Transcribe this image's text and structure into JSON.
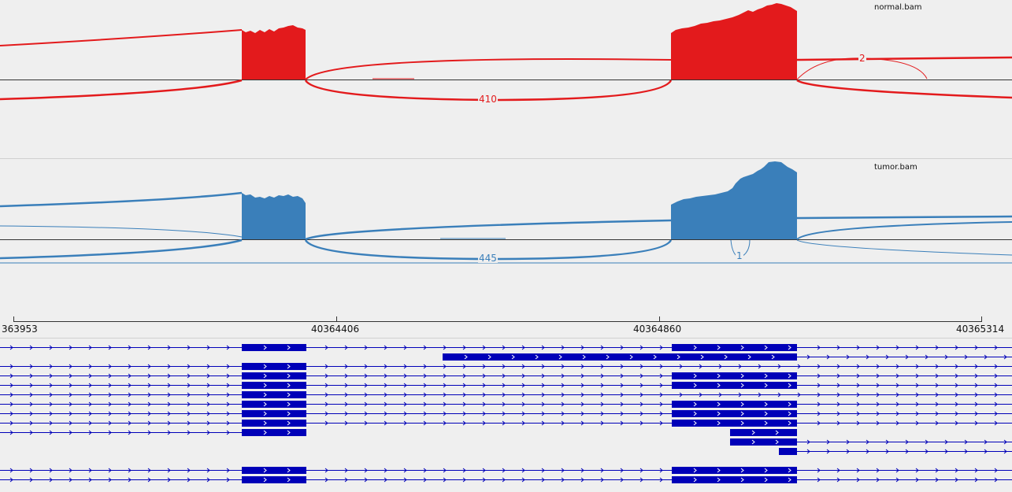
{
  "tracks": {
    "normal": {
      "name": "normal.bam",
      "color": "#e31a1c",
      "junction_labels": [
        "410",
        "2"
      ]
    },
    "tumor": {
      "name": "tumor.bam",
      "color": "#3a7fba",
      "junction_labels": [
        "445",
        "1"
      ]
    }
  },
  "ruler": {
    "ticks": [
      "363953",
      "40364406",
      "40364860",
      "40365314"
    ]
  },
  "annotation": {
    "color": "#0000b8",
    "feature_type": "transcript"
  }
}
